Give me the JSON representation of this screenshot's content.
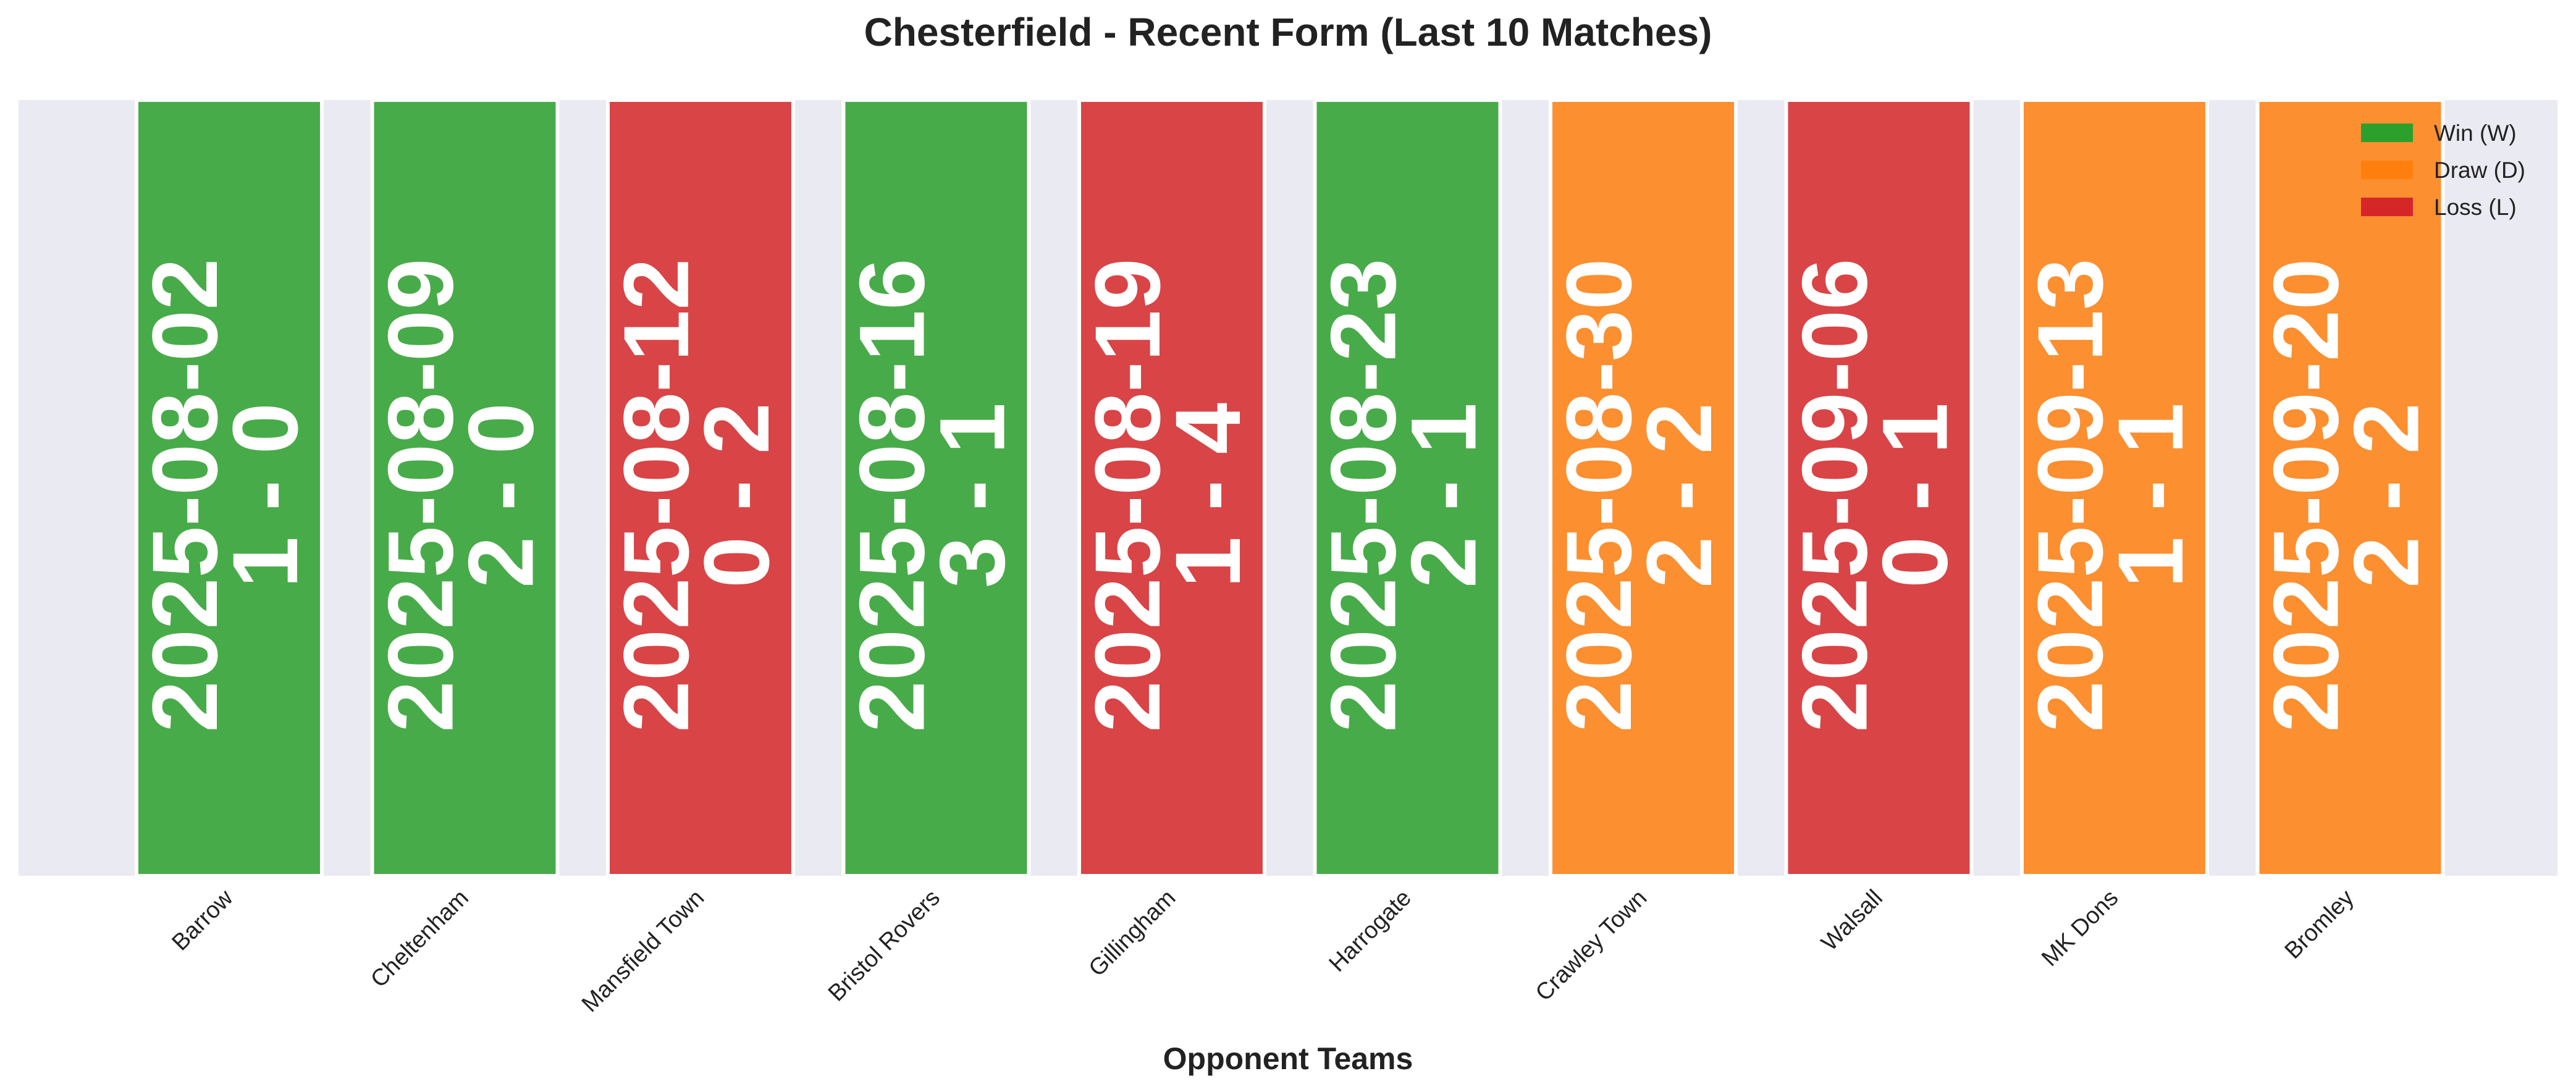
{
  "chart_data": {
    "type": "bar",
    "title": "Chesterfield - Recent Form (Last 10 Matches)",
    "xlabel": "Opponent Teams",
    "ylabel": "",
    "categories": [
      "Barrow",
      "Cheltenham",
      "Mansfield Town",
      "Bristol Rovers",
      "Gillingham",
      "Harrogate",
      "Crawley Town",
      "Walsall",
      "MK Dons",
      "Bromley"
    ],
    "dates": [
      "2025-08-02",
      "2025-08-09",
      "2025-08-12",
      "2025-08-16",
      "2025-08-19",
      "2025-08-23",
      "2025-08-30",
      "2025-09-06",
      "2025-09-13",
      "2025-09-20"
    ],
    "scores": [
      "1 - 0",
      "2 - 0",
      "0 - 2",
      "3 - 1",
      "1 - 4",
      "2 - 1",
      "2 - 2",
      "0 - 1",
      "1 - 1",
      "2 - 2"
    ],
    "results": [
      "W",
      "W",
      "L",
      "W",
      "L",
      "W",
      "D",
      "L",
      "D",
      "D"
    ],
    "values": [
      1,
      1,
      1,
      1,
      1,
      1,
      1,
      1,
      1,
      1
    ],
    "grid": false,
    "legend": {
      "placement": "top-right",
      "entries": [
        {
          "key": "W",
          "label": "Win (W)",
          "color": "#2ca02c"
        },
        {
          "key": "D",
          "label": "Draw (D)",
          "color": "#ff7f0e"
        },
        {
          "key": "L",
          "label": "Loss (L)",
          "color": "#d62728"
        }
      ]
    },
    "colors": {
      "plot_background": "#eaeaf2",
      "bar_edge": "#ffffff",
      "bar_label": "#ffffff"
    }
  }
}
